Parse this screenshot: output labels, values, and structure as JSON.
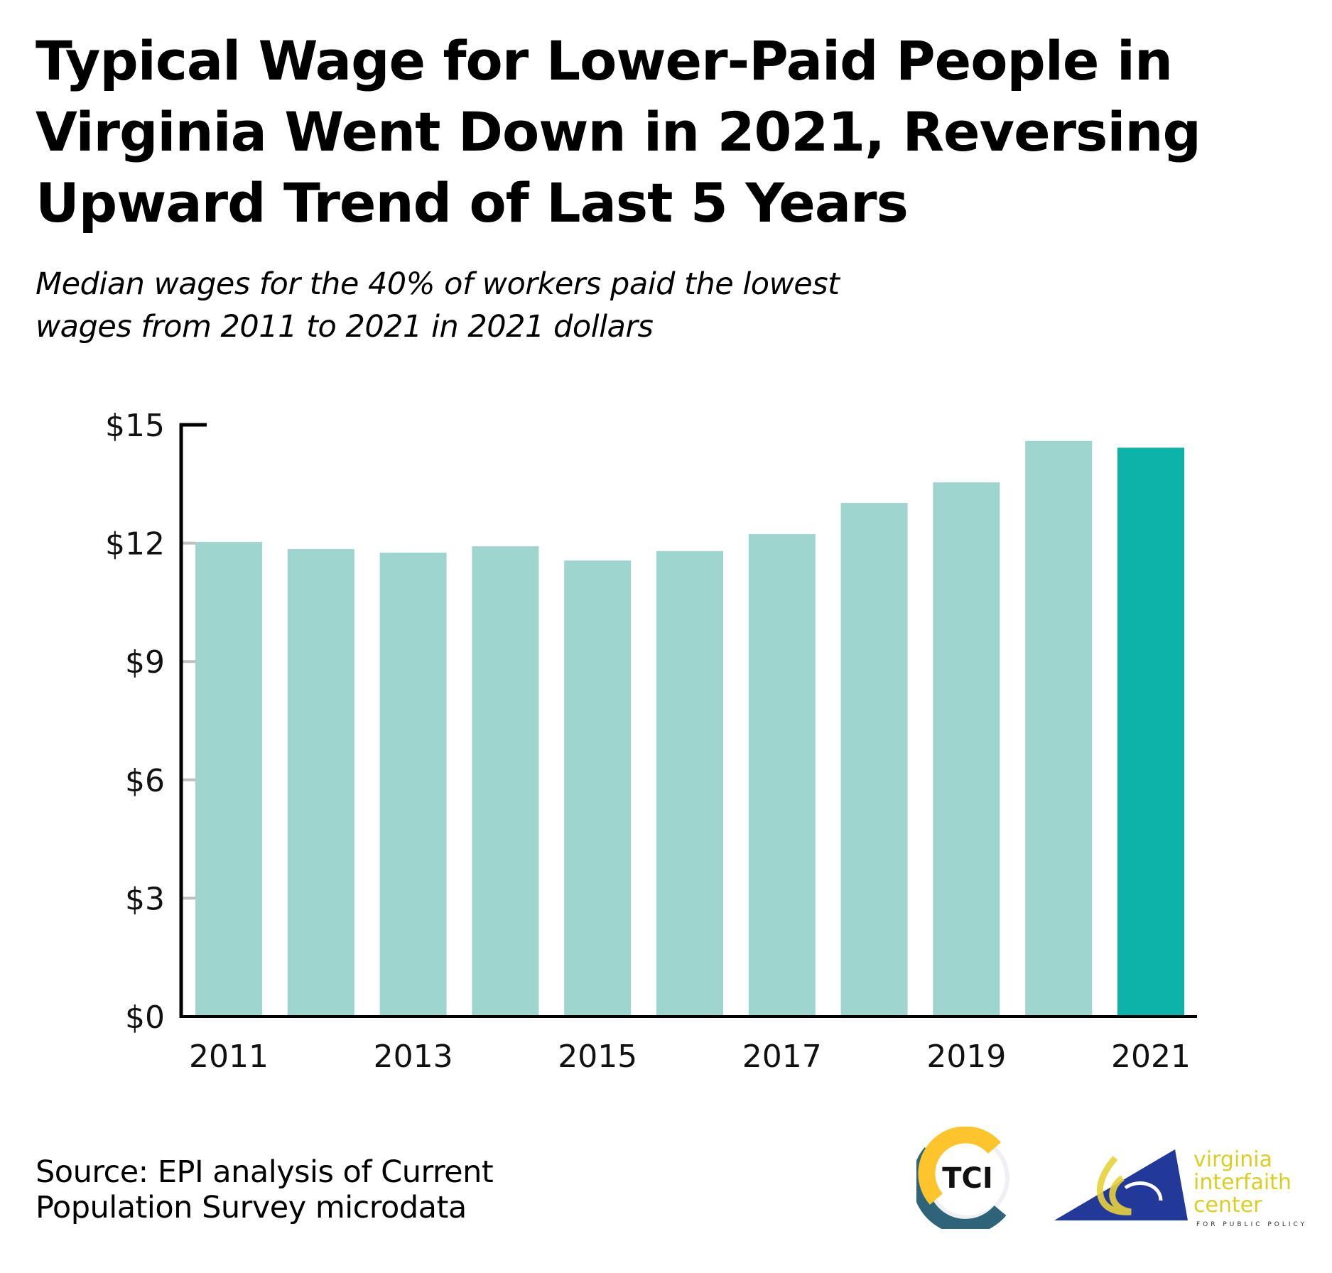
{
  "header": {
    "title_lines": [
      "Typical Wage for Lower-Paid People in",
      "Virginia Went Down in 2021, Reversing",
      "Upward Trend of Last 5 Years"
    ],
    "subtitle_lines": [
      "Median wages for the 40% of workers paid the lowest",
      "wages from 2011 to 2021 in 2021 dollars"
    ]
  },
  "footer": {
    "source_lines": [
      "Source: EPI analysis of Current",
      "Population Survey microdata"
    ],
    "logos": [
      {
        "name": "TCI",
        "text": "TCI",
        "colors": {
          "yellow": "#FDC42B",
          "blue": "#2F6379",
          "ring": "#EEF0F3"
        }
      },
      {
        "name": "Virginia Interfaith Center for Public Policy",
        "text_lines": [
          "virginia",
          "interfaith",
          "center"
        ],
        "tagline": "FOR PUBLIC POLICY",
        "colors": {
          "text": "#D9CE22",
          "triangle": "#23399A"
        }
      }
    ]
  },
  "colors": {
    "bar": "#9ED5CF",
    "bar_highlight": "#0DB2A8",
    "axis": "#000000",
    "tick": "#BFBFBF"
  },
  "chart_data": {
    "type": "bar",
    "title": "Typical Wage for Lower-Paid People in Virginia Went Down in 2021, Reversing Upward Trend of Last 5 Years",
    "subtitle": "Median wages for the 40% of workers paid the lowest wages from 2011 to 2021 in 2021 dollars",
    "xlabel": "",
    "ylabel": "",
    "categories": [
      "2011",
      "2012",
      "2013",
      "2014",
      "2015",
      "2016",
      "2017",
      "2018",
      "2019",
      "2020",
      "2021"
    ],
    "values": [
      12.03,
      11.85,
      11.76,
      11.92,
      11.56,
      11.8,
      12.23,
      13.02,
      13.54,
      14.59,
      14.42
    ],
    "highlight_index": 10,
    "x_tick_labels": [
      "2011",
      "2013",
      "2015",
      "2017",
      "2019",
      "2021"
    ],
    "y_ticks": [
      0,
      3,
      6,
      9,
      12,
      15
    ],
    "y_tick_labels": [
      "$0",
      "$3",
      "$6",
      "$9",
      "$12",
      "$15"
    ],
    "ylim": [
      0,
      15
    ],
    "grid": false,
    "legend": null,
    "source": "Source: EPI analysis of Current Population Survey microdata"
  }
}
